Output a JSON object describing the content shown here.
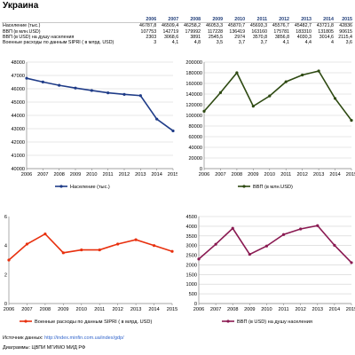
{
  "page": {
    "title": "Украина"
  },
  "table": {
    "years": [
      "2006",
      "2007",
      "2008",
      "2009",
      "2010",
      "2011",
      "2012",
      "2013",
      "2014",
      "2015"
    ],
    "rows": [
      {
        "label": "Население (тыс.)",
        "values": [
          "46787,8",
          "46509,4",
          "46258,2",
          "46053,3",
          "45870,7",
          "45693,3",
          "45576,7",
          "45482,7",
          "43721,8",
          "42836"
        ]
      },
      {
        "label": "ВВП  (в млн.USD)",
        "values": [
          "107753",
          "142719",
          "179992",
          "117228",
          "136419",
          "163160",
          "175781",
          "183310",
          "131805",
          "90615"
        ]
      },
      {
        "label": "ВВП (в USD) на душу населения",
        "values": [
          "2303",
          "3068,6",
          "3891",
          "2545,5",
          "2974",
          "3570,8",
          "3856,8",
          "4030,3",
          "3014,6",
          "2115,4"
        ]
      },
      {
        "label": "Военные расходы по данным SIPRI ( в млрд. USD)",
        "values": [
          "3",
          "4,1",
          "4,8",
          "3,5",
          "3,7",
          "3,7",
          "4,1",
          "4,4",
          "4",
          "3,6"
        ]
      }
    ]
  },
  "colors": {
    "blue": "#1f3c88",
    "green": "#2e4a12",
    "red": "#e8300e",
    "purple": "#8a1a52"
  },
  "chart_data": [
    {
      "type": "line",
      "x": [
        "2006",
        "2007",
        "2008",
        "2009",
        "2010",
        "2011",
        "2012",
        "2013",
        "2014",
        "2015"
      ],
      "series": [
        {
          "name": "Население (тыс.)",
          "values": [
            46787.8,
            46509.4,
            46258.2,
            46053.3,
            45870.7,
            45693.3,
            45576.7,
            45482.7,
            43721.8,
            42836
          ],
          "color": "#1f3c88"
        }
      ],
      "ylim": [
        40000,
        48000
      ],
      "yticks": [
        "40000",
        "41000",
        "42000",
        "43000",
        "44000",
        "45000",
        "46000",
        "47000",
        "48000"
      ],
      "grid": true,
      "legend": "bottom"
    },
    {
      "type": "line",
      "x": [
        "2006",
        "2007",
        "2008",
        "2009",
        "2010",
        "2011",
        "2012",
        "2013",
        "2014",
        "2015"
      ],
      "series": [
        {
          "name": "ВВП  (в млн.USD)",
          "values": [
            107753,
            142719,
            179992,
            117228,
            136419,
            163160,
            175781,
            183310,
            131805,
            90615
          ],
          "color": "#2e4a12"
        }
      ],
      "ylim": [
        0,
        200000
      ],
      "yticks": [
        "0",
        "20000",
        "40000",
        "60000",
        "80000",
        "100000",
        "120000",
        "140000",
        "160000",
        "180000",
        "200000"
      ],
      "grid": true,
      "legend": "bottom"
    },
    {
      "type": "line",
      "x": [
        "2006",
        "2007",
        "2008",
        "2009",
        "2010",
        "2011",
        "2012",
        "2013",
        "2014",
        "2015"
      ],
      "series": [
        {
          "name": "Военные расходы по данным SIPRI ( в млрд. USD)",
          "values": [
            3,
            4.1,
            4.8,
            3.5,
            3.7,
            3.7,
            4.1,
            4.4,
            4,
            3.6
          ],
          "color": "#e8300e"
        }
      ],
      "ylim": [
        0,
        6
      ],
      "yticks": [
        "0",
        "2",
        "4",
        "6"
      ],
      "grid": false,
      "legend": "bottom"
    },
    {
      "type": "line",
      "x": [
        "2006",
        "2007",
        "2008",
        "2009",
        "2010",
        "2011",
        "2012",
        "2013",
        "2014",
        "2015"
      ],
      "series": [
        {
          "name": "ВВП (в USD) на душу населения",
          "values": [
            2303,
            3068.6,
            3891,
            2545.5,
            2974,
            3570.8,
            3856.8,
            4030.3,
            3014.6,
            2115.4
          ],
          "color": "#8a1a52"
        }
      ],
      "ylim": [
        0,
        4500
      ],
      "yticks": [
        "0",
        "500",
        "1000",
        "1500",
        "2000",
        "2500",
        "3000",
        "3500",
        "4000",
        "4500"
      ],
      "grid": true,
      "legend": "bottom"
    }
  ],
  "footer": {
    "source_label": "Источник данных: ",
    "source_url": "http://index.minfin.com.ua/index/gdp/",
    "diagrams_label": "Диаграммы: ЦВПИ МГИМО МИД РФ"
  }
}
